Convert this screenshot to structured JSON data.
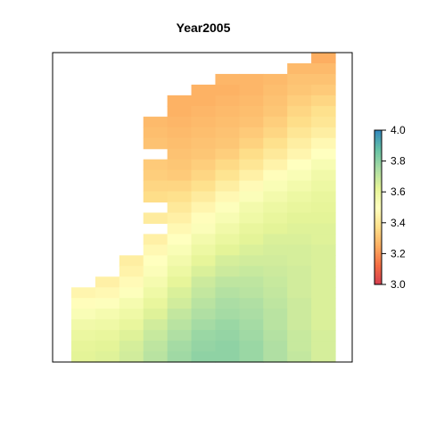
{
  "chart_data": {
    "type": "heatmap",
    "title": "Year2005",
    "xlabel": "",
    "ylabel": "",
    "x_axis_shown": false,
    "y_axis_shown": false,
    "n_cols": 11,
    "n_rows": 29,
    "null_value": null,
    "values": [
      [
        null,
        null,
        null,
        null,
        null,
        null,
        null,
        null,
        null,
        null,
        3.25
      ],
      [
        null,
        null,
        null,
        null,
        null,
        null,
        null,
        null,
        null,
        3.28,
        3.28
      ],
      [
        null,
        null,
        null,
        null,
        null,
        null,
        3.27,
        3.27,
        3.28,
        3.3,
        3.3
      ],
      [
        null,
        null,
        null,
        null,
        null,
        3.26,
        3.26,
        3.27,
        3.29,
        3.31,
        3.32
      ],
      [
        null,
        null,
        null,
        null,
        3.26,
        3.26,
        3.27,
        3.28,
        3.3,
        3.33,
        3.35
      ],
      [
        null,
        null,
        null,
        null,
        3.26,
        3.27,
        3.28,
        3.29,
        3.31,
        3.35,
        3.38
      ],
      [
        null,
        null,
        null,
        3.28,
        3.27,
        3.28,
        3.29,
        3.3,
        3.33,
        3.37,
        3.4
      ],
      [
        null,
        null,
        null,
        3.29,
        3.28,
        3.29,
        3.3,
        3.32,
        3.35,
        3.4,
        3.43
      ],
      [
        null,
        null,
        null,
        3.3,
        3.29,
        3.3,
        3.31,
        3.34,
        3.38,
        3.43,
        3.47
      ],
      [
        null,
        null,
        null,
        null,
        3.3,
        3.31,
        3.33,
        3.37,
        3.41,
        3.46,
        3.5
      ],
      [
        null,
        null,
        null,
        3.32,
        3.31,
        3.33,
        3.36,
        3.4,
        3.45,
        3.5,
        3.54
      ],
      [
        null,
        null,
        null,
        3.33,
        3.32,
        3.35,
        3.39,
        3.44,
        3.49,
        3.53,
        3.57
      ],
      [
        null,
        null,
        null,
        3.35,
        3.35,
        3.38,
        3.43,
        3.48,
        3.53,
        3.56,
        3.59
      ],
      [
        null,
        null,
        null,
        3.37,
        3.38,
        3.42,
        3.47,
        3.52,
        3.56,
        3.59,
        3.61
      ],
      [
        null,
        null,
        null,
        null,
        3.41,
        3.46,
        3.51,
        3.56,
        3.59,
        3.61,
        3.62
      ],
      [
        null,
        null,
        null,
        3.42,
        3.44,
        3.49,
        3.54,
        3.58,
        3.61,
        3.63,
        3.63
      ],
      [
        null,
        null,
        null,
        null,
        3.47,
        3.52,
        3.57,
        3.61,
        3.63,
        3.64,
        3.64
      ],
      [
        null,
        null,
        null,
        3.44,
        3.5,
        3.56,
        3.6,
        3.63,
        3.65,
        3.65,
        3.64
      ],
      [
        null,
        null,
        null,
        3.47,
        3.53,
        3.59,
        3.63,
        3.65,
        3.66,
        3.66,
        3.65
      ],
      [
        null,
        null,
        3.43,
        3.5,
        3.56,
        3.62,
        3.66,
        3.67,
        3.67,
        3.66,
        3.65
      ],
      [
        null,
        null,
        3.45,
        3.52,
        3.59,
        3.65,
        3.68,
        3.69,
        3.68,
        3.67,
        3.65
      ],
      [
        null,
        3.44,
        3.48,
        3.55,
        3.62,
        3.68,
        3.71,
        3.71,
        3.69,
        3.67,
        3.65
      ],
      [
        3.46,
        3.47,
        3.51,
        3.58,
        3.65,
        3.7,
        3.73,
        3.72,
        3.7,
        3.67,
        3.65
      ],
      [
        3.49,
        3.51,
        3.55,
        3.61,
        3.67,
        3.72,
        3.75,
        3.74,
        3.71,
        3.68,
        3.65
      ],
      [
        3.53,
        3.55,
        3.58,
        3.64,
        3.7,
        3.74,
        3.76,
        3.75,
        3.72,
        3.68,
        3.65
      ],
      [
        3.57,
        3.58,
        3.61,
        3.67,
        3.72,
        3.76,
        3.78,
        3.76,
        3.72,
        3.68,
        3.65
      ],
      [
        3.6,
        3.61,
        3.64,
        3.69,
        3.74,
        3.78,
        3.79,
        3.77,
        3.73,
        3.69,
        3.66
      ],
      [
        3.62,
        3.63,
        3.66,
        3.71,
        3.76,
        3.79,
        3.8,
        3.78,
        3.74,
        3.69,
        3.66
      ],
      [
        3.63,
        3.64,
        3.67,
        3.72,
        3.77,
        3.8,
        3.8,
        3.78,
        3.74,
        3.7,
        3.66
      ]
    ],
    "colorbar": {
      "min": 3.0,
      "max": 4.0,
      "ticks": [
        "3.0",
        "3.2",
        "3.4",
        "3.6",
        "3.8",
        "4.0"
      ],
      "palette": [
        "#d53e4f",
        "#f46d43",
        "#fdae61",
        "#fee08b",
        "#ffffbf",
        "#e6f598",
        "#abdda4",
        "#66c2a5",
        "#3288bd"
      ],
      "palette_positions": [
        0.0,
        0.125,
        0.25,
        0.375,
        0.5,
        0.625,
        0.75,
        0.875,
        1.0
      ],
      "colors": {
        "low": "#d53e4f",
        "mid": "#ffffbf",
        "high": "#3288bd"
      }
    },
    "grid": false,
    "legend": "right"
  }
}
